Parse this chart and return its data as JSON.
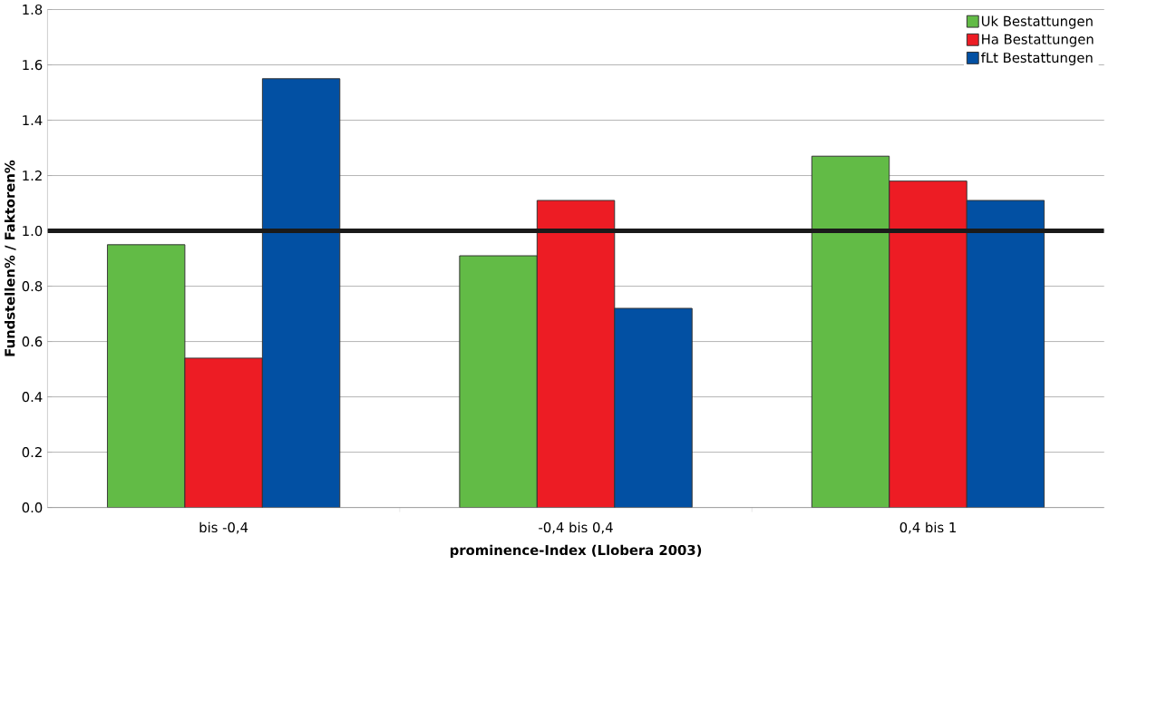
{
  "chart_data": {
    "type": "bar",
    "xlabel": "prominence-Index (Llobera 2003)",
    "ylabel": "Fundstellen% / Faktoren%",
    "categories": [
      "bis -0,4",
      "-0,4 bis 0,4",
      "0,4 bis 1"
    ],
    "series": [
      {
        "name": "Uk Bestattungen",
        "color": "#62bb46",
        "values": [
          0.95,
          0.91,
          1.27
        ]
      },
      {
        "name": "Ha Bestattungen",
        "color": "#ed1c24",
        "values": [
          0.54,
          1.11,
          1.18
        ]
      },
      {
        "name": "fLt Bestattungen",
        "color": "#0250a3",
        "values": [
          1.55,
          0.72,
          1.11
        ]
      }
    ],
    "ylim": [
      0,
      1.8
    ],
    "yticks": [
      {
        "value": 0,
        "label": "0.0"
      },
      {
        "value": 0.2,
        "label": "0.2"
      },
      {
        "value": 0.4,
        "label": "0.4"
      },
      {
        "value": 0.6,
        "label": "0.6"
      },
      {
        "value": 0.8,
        "label": "0.8"
      },
      {
        "value": 1.0,
        "label": "1.0"
      },
      {
        "value": 1.2,
        "label": "1.2"
      },
      {
        "value": 1.4,
        "label": "1.4"
      },
      {
        "value": 1.6,
        "label": "1.6"
      },
      {
        "value": 1.8,
        "label": "1.8"
      }
    ],
    "ref_lines": [
      {
        "axis": "y",
        "value": 1.0,
        "color": "#1a1a1a"
      }
    ],
    "grid": "y",
    "legend": "top right"
  }
}
